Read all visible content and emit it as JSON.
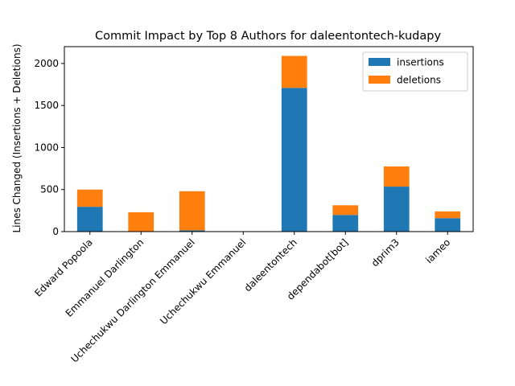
{
  "chart_data": {
    "type": "bar",
    "stacked": true,
    "title": "Commit Impact by Top 8 Authors for daleentontech-kudapy",
    "xlabel": "",
    "ylabel": "Lines Changed (Insertions + Deletions)",
    "categories": [
      "Edward Popoola",
      "Emmanuel Darlington",
      "Uchechukwu Darlington Emmanuel",
      "Uchechukwu Emmanuel",
      "daleentontech",
      "dependabot[bot]",
      "dprim3",
      "iameo"
    ],
    "series": [
      {
        "name": "insertions",
        "color": "#1f77b4",
        "values": [
          295,
          2,
          15,
          0,
          1710,
          198,
          535,
          160
        ]
      },
      {
        "name": "deletions",
        "color": "#ff7f0e",
        "values": [
          205,
          228,
          465,
          0,
          380,
          115,
          240,
          80
        ]
      }
    ],
    "ylim": [
      0,
      2200
    ],
    "yticks": [
      0,
      500,
      1000,
      1500,
      2000
    ],
    "grid": false,
    "legend_position": "top-right"
  }
}
